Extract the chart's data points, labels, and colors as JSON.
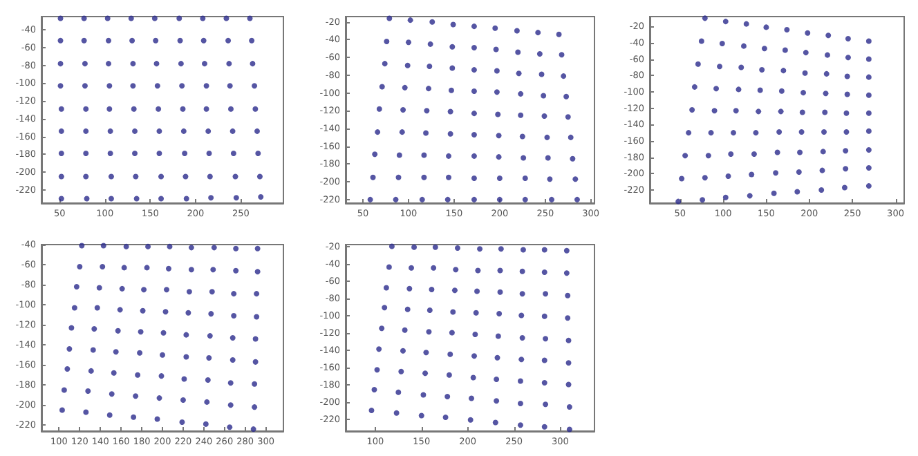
{
  "chart_data": [
    {
      "type": "scatter",
      "marker": "circle",
      "grid": false,
      "xlim": [
        30,
        297
      ],
      "xticks": [
        50,
        100,
        150,
        200,
        250
      ],
      "ylim": [
        -235,
        -25
      ],
      "yticks": [
        -220,
        -200,
        -180,
        -160,
        -140,
        -120,
        -100,
        -80,
        -60,
        -40
      ],
      "series": [
        {
          "color": "#2b2b8c",
          "x": [
            51,
            77,
            103,
            129,
            155,
            182,
            208,
            234,
            260,
            51,
            77,
            104,
            130,
            156,
            183,
            209,
            236,
            262,
            51,
            78,
            104,
            131,
            157,
            184,
            210,
            237,
            263,
            51,
            78,
            105,
            131,
            158,
            185,
            212,
            238,
            265,
            52,
            79,
            105,
            132,
            159,
            186,
            212,
            239,
            266,
            52,
            79,
            106,
            133,
            160,
            187,
            214,
            241,
            268,
            52,
            79,
            106,
            133,
            160,
            188,
            215,
            242,
            269,
            52,
            79,
            107,
            134,
            162,
            189,
            216,
            244,
            271,
            52,
            80,
            107,
            135,
            162,
            190,
            217,
            245,
            272
          ],
          "values": [
            -27,
            -27,
            -27,
            -27,
            -27,
            -27,
            -27,
            -27,
            -27,
            -52,
            -52,
            -52,
            -52,
            -52,
            -52,
            -52,
            -52,
            -52,
            -78,
            -78,
            -78,
            -78,
            -78,
            -78,
            -78,
            -78,
            -78,
            -103,
            -103,
            -103,
            -103,
            -103,
            -103,
            -103,
            -103,
            -103,
            -129,
            -129,
            -129,
            -129,
            -129,
            -129,
            -129,
            -129,
            -129,
            -154,
            -154,
            -154,
            -154,
            -154,
            -154,
            -154,
            -154,
            -154,
            -179,
            -179,
            -179,
            -179,
            -179,
            -179,
            -179,
            -179,
            -179,
            -205,
            -205,
            -205,
            -205,
            -205,
            -205,
            -205,
            -205,
            -205,
            -230,
            -230,
            -230,
            -230,
            -230,
            -230,
            -229,
            -229,
            -228
          ]
        }
      ]
    },
    {
      "type": "scatter",
      "marker": "circle",
      "grid": false,
      "xlim": [
        31,
        304
      ],
      "xticks": [
        50,
        100,
        150,
        200,
        250,
        300
      ],
      "ylim": [
        -224,
        -14
      ],
      "yticks": [
        -220,
        -200,
        -180,
        -160,
        -140,
        -120,
        -100,
        -80,
        -60,
        -40,
        -20
      ],
      "series": [
        {
          "color": "#2b2b8c",
          "x": [
            79,
            102,
            126,
            149,
            172,
            195,
            219,
            242,
            265,
            76,
            100,
            124,
            148,
            172,
            196,
            220,
            244,
            268,
            74,
            99,
            123,
            148,
            172,
            197,
            221,
            246,
            270,
            71,
            96,
            122,
            147,
            172,
            197,
            223,
            248,
            273,
            68,
            94,
            120,
            146,
            172,
            198,
            223,
            249,
            275,
            66,
            93,
            119,
            146,
            172,
            199,
            225,
            252,
            278,
            63,
            90,
            117,
            144,
            172,
            199,
            226,
            253,
            280,
            61,
            89,
            117,
            144,
            172,
            200,
            228,
            255,
            283,
            58,
            86,
            115,
            143,
            172,
            200,
            228,
            257,
            285
          ],
          "values": [
            -16,
            -18,
            -20,
            -23,
            -25,
            -27,
            -30,
            -32,
            -34,
            -42,
            -43,
            -45,
            -48,
            -49,
            -51,
            -54,
            -56,
            -57,
            -67,
            -69,
            -70,
            -72,
            -74,
            -75,
            -78,
            -79,
            -81,
            -93,
            -94,
            -95,
            -97,
            -98,
            -99,
            -101,
            -103,
            -104,
            -118,
            -119,
            -120,
            -121,
            -123,
            -124,
            -125,
            -126,
            -127,
            -144,
            -144,
            -145,
            -146,
            -147,
            -148,
            -149,
            -150,
            -150,
            -169,
            -170,
            -170,
            -171,
            -171,
            -172,
            -173,
            -173,
            -174,
            -195,
            -195,
            -195,
            -195,
            -196,
            -196,
            -196,
            -197,
            -197,
            -220,
            -220,
            -220,
            -220,
            -220,
            -220,
            -220,
            -220,
            -220
          ]
        }
      ]
    },
    {
      "type": "scatter",
      "marker": "circle",
      "grid": false,
      "xlim": [
        15,
        310
      ],
      "xticks": [
        50,
        100,
        150,
        200,
        250,
        300
      ],
      "ylim": [
        -236,
        -8
      ],
      "yticks": [
        -220,
        -200,
        -180,
        -160,
        -140,
        -120,
        -100,
        -80,
        -60,
        -40,
        -20
      ],
      "series": [
        {
          "color": "#2b2b8c",
          "x": [
            79,
            103,
            127,
            150,
            174,
            198,
            222,
            245,
            269,
            75,
            99,
            124,
            148,
            172,
            196,
            221,
            245,
            269,
            71,
            96,
            121,
            145,
            170,
            195,
            220,
            244,
            269,
            67,
            92,
            118,
            143,
            168,
            193,
            219,
            244,
            269,
            64,
            90,
            115,
            141,
            167,
            192,
            218,
            243,
            269,
            60,
            86,
            112,
            138,
            165,
            191,
            217,
            243,
            269,
            56,
            83,
            109,
            136,
            163,
            189,
            216,
            242,
            269,
            52,
            79,
            106,
            133,
            161,
            188,
            215,
            242,
            269,
            48,
            76,
            103,
            131,
            159,
            186,
            214,
            241,
            269
          ],
          "values": [
            -10,
            -14,
            -17,
            -21,
            -24,
            -28,
            -31,
            -35,
            -38,
            -38,
            -41,
            -44,
            -47,
            -49,
            -52,
            -55,
            -58,
            -60,
            -66,
            -69,
            -70,
            -73,
            -74,
            -77,
            -78,
            -81,
            -82,
            -94,
            -96,
            -97,
            -98,
            -99,
            -101,
            -102,
            -103,
            -104,
            -122,
            -123,
            -123,
            -124,
            -124,
            -125,
            -125,
            -126,
            -126,
            -150,
            -150,
            -150,
            -150,
            -149,
            -149,
            -149,
            -149,
            -148,
            -178,
            -178,
            -176,
            -176,
            -174,
            -174,
            -173,
            -172,
            -171,
            -206,
            -205,
            -203,
            -201,
            -199,
            -198,
            -196,
            -194,
            -193,
            -234,
            -232,
            -229,
            -227,
            -224,
            -222,
            -220,
            -217,
            -215
          ]
        }
      ]
    },
    {
      "type": "scatter",
      "marker": "circle",
      "grid": false,
      "xlim": [
        83,
        317
      ],
      "xticks": [
        100,
        120,
        140,
        160,
        180,
        200,
        220,
        240,
        260,
        280,
        300
      ],
      "ylim": [
        -226,
        -40
      ],
      "yticks": [
        -220,
        -200,
        -180,
        -160,
        -140,
        -120,
        -100,
        -80,
        -60,
        -40
      ],
      "series": [
        {
          "color": "#2b2b8c",
          "x": [
            122,
            143,
            165,
            186,
            207,
            228,
            250,
            271,
            292,
            120,
            142,
            163,
            185,
            206,
            228,
            249,
            271,
            292,
            117,
            139,
            161,
            182,
            204,
            226,
            248,
            269,
            291,
            115,
            137,
            159,
            181,
            203,
            225,
            247,
            269,
            291,
            112,
            134,
            157,
            179,
            201,
            223,
            246,
            268,
            290,
            110,
            133,
            155,
            178,
            200,
            223,
            245,
            268,
            290,
            108,
            131,
            153,
            176,
            199,
            221,
            244,
            266,
            289,
            105,
            128,
            151,
            174,
            197,
            220,
            243,
            266,
            289,
            103,
            126,
            149,
            172,
            195,
            219,
            242,
            265,
            288
          ],
          "values": [
            -41,
            -41,
            -42,
            -42,
            -42,
            -43,
            -43,
            -44,
            -44,
            -62,
            -62,
            -63,
            -63,
            -64,
            -65,
            -65,
            -66,
            -67,
            -82,
            -83,
            -84,
            -85,
            -85,
            -87,
            -87,
            -89,
            -89,
            -103,
            -103,
            -105,
            -106,
            -107,
            -108,
            -109,
            -111,
            -112,
            -123,
            -124,
            -126,
            -127,
            -128,
            -130,
            -131,
            -133,
            -134,
            -144,
            -145,
            -147,
            -148,
            -150,
            -152,
            -153,
            -155,
            -157,
            -164,
            -166,
            -168,
            -170,
            -171,
            -174,
            -175,
            -178,
            -179,
            -185,
            -186,
            -189,
            -191,
            -193,
            -195,
            -197,
            -200,
            -202,
            -205,
            -207,
            -210,
            -212,
            -214,
            -217,
            -219,
            -222,
            -224
          ]
        }
      ]
    },
    {
      "type": "scatter",
      "marker": "circle",
      "grid": false,
      "xlim": [
        68,
        337
      ],
      "xticks": [
        100,
        150,
        200,
        250,
        300
      ],
      "ylim": [
        -234,
        -18
      ],
      "yticks": [
        -220,
        -200,
        -180,
        -160,
        -140,
        -120,
        -100,
        -80,
        -60,
        -40,
        -20
      ],
      "series": [
        {
          "color": "#2b2b8c",
          "x": [
            118,
            142,
            165,
            189,
            213,
            236,
            260,
            283,
            307,
            115,
            139,
            163,
            187,
            211,
            235,
            259,
            283,
            307,
            112,
            137,
            161,
            186,
            210,
            235,
            259,
            284,
            308,
            110,
            135,
            159,
            184,
            209,
            234,
            258,
            283,
            308,
            107,
            132,
            158,
            183,
            208,
            233,
            259,
            284,
            309,
            104,
            130,
            155,
            181,
            207,
            232,
            258,
            283,
            309,
            102,
            128,
            154,
            180,
            206,
            231,
            257,
            283,
            309,
            99,
            125,
            152,
            178,
            204,
            231,
            257,
            284,
            310,
            96,
            123,
            150,
            176,
            203,
            230,
            257,
            283,
            310
          ],
          "values": [
            -20,
            -21,
            -21,
            -22,
            -23,
            -23,
            -24,
            -24,
            -25,
            -44,
            -45,
            -45,
            -47,
            -48,
            -48,
            -49,
            -50,
            -51,
            -68,
            -69,
            -70,
            -71,
            -72,
            -73,
            -75,
            -75,
            -77,
            -91,
            -93,
            -94,
            -96,
            -97,
            -98,
            -100,
            -101,
            -103,
            -115,
            -117,
            -119,
            -120,
            -122,
            -124,
            -126,
            -127,
            -129,
            -139,
            -141,
            -143,
            -145,
            -147,
            -149,
            -151,
            -152,
            -155,
            -163,
            -165,
            -167,
            -169,
            -172,
            -174,
            -176,
            -178,
            -180,
            -186,
            -189,
            -192,
            -194,
            -196,
            -199,
            -202,
            -203,
            -206,
            -210,
            -213,
            -216,
            -218,
            -221,
            -224,
            -227,
            -229,
            -232
          ]
        }
      ]
    }
  ]
}
